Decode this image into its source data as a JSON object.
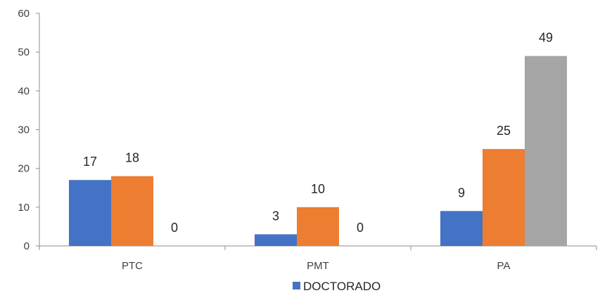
{
  "chart_data": {
    "type": "bar",
    "categories": [
      "PTC",
      "PMT",
      "PA"
    ],
    "series": [
      {
        "name": "DOCTORADO",
        "values": [
          17,
          3,
          9
        ],
        "color": "#4472C4"
      },
      {
        "values": [
          18,
          10,
          25
        ],
        "color": "#ED7D31"
      },
      {
        "values": [
          0,
          0,
          49
        ],
        "color": "#A5A5A5"
      }
    ],
    "yticks": [
      0,
      10,
      20,
      30,
      40,
      50,
      60
    ],
    "ylim": [
      0,
      60
    ],
    "title": "",
    "xlabel": "",
    "ylabel": "",
    "grid": false,
    "data_labels": true,
    "legend": {
      "position": "bottom",
      "entries": [
        "DOCTORADO"
      ]
    }
  }
}
